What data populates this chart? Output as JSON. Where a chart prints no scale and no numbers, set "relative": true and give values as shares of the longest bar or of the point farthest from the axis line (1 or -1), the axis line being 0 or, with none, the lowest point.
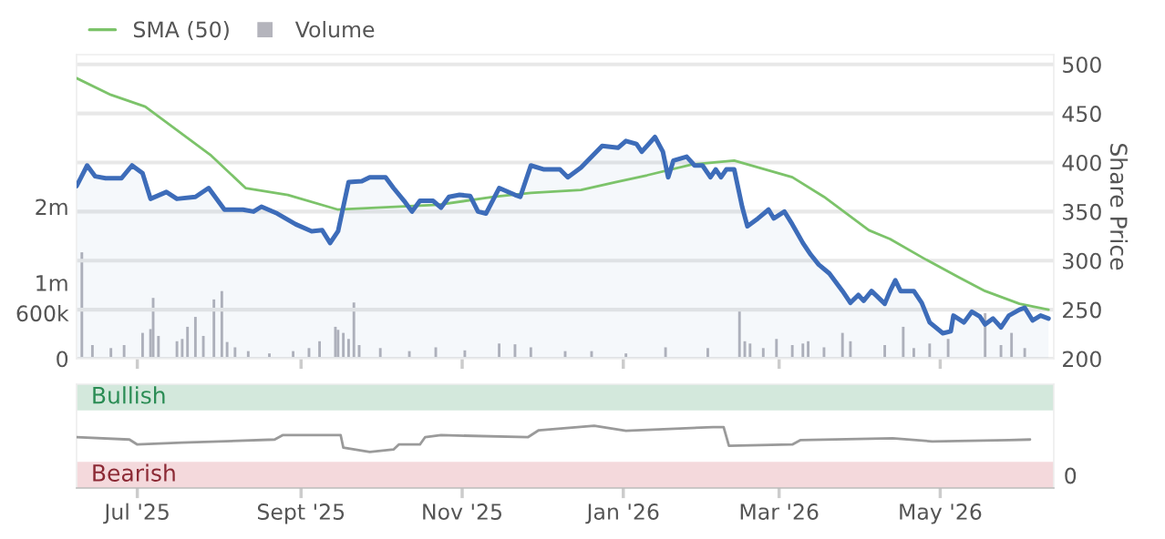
{
  "chart_data": [
    {
      "type": "line",
      "ylabel": "Share Price",
      "legend": "top left",
      "grid": "y",
      "tick_labels": "y",
      "xlim": [
        "2025-06-08",
        "2026-06-13"
      ],
      "xticks": [
        {
          "value": "2025-07-01",
          "label": null
        },
        {
          "value": "2025-09-01",
          "label": null
        },
        {
          "value": "2025-11-01",
          "label": null
        },
        {
          "value": "2026-01-01",
          "label": null
        },
        {
          "value": "2026-03-01",
          "label": null
        },
        {
          "value": "2026-05-01",
          "label": null
        }
      ],
      "ylim": [
        200,
        510
      ],
      "yticks": [
        200,
        250,
        300,
        350,
        400,
        450,
        500
      ],
      "y2lim": [
        0,
        4000000
      ],
      "y2ticks": [
        0,
        {
          "value": 600000,
          "label": "600k"
        },
        {
          "value": 1000000,
          "label": "1m"
        },
        {
          "value": 2000000,
          "label": "2m"
        }
      ],
      "series": [
        {
          "type": "area",
          "color": "#3d6cb9",
          "x": [
            "2025-06-08",
            "2025-06-12",
            "2025-06-15",
            "2025-06-19",
            "2025-06-25",
            "2025-06-29",
            "2025-07-03",
            "2025-07-06",
            "2025-07-12",
            "2025-07-16",
            "2025-07-23",
            "2025-07-28",
            "2025-08-03",
            "2025-08-10",
            "2025-08-14",
            "2025-08-17",
            "2025-08-23",
            "2025-08-30",
            "2025-09-05",
            "2025-09-09",
            "2025-09-12",
            "2025-09-15",
            "2025-09-19",
            "2025-09-24",
            "2025-09-27",
            "2025-10-03",
            "2025-10-06",
            "2025-10-10",
            "2025-10-13",
            "2025-10-16",
            "2025-10-21",
            "2025-10-24",
            "2025-10-27",
            "2025-10-31",
            "2025-11-04",
            "2025-11-07",
            "2025-11-10",
            "2025-11-15",
            "2025-11-21",
            "2025-11-23",
            "2025-11-27",
            "2025-12-02",
            "2025-12-08",
            "2025-12-11",
            "2025-12-16",
            "2025-12-24",
            "2025-12-30",
            "2026-01-02",
            "2026-01-06",
            "2026-01-08",
            "2026-01-13",
            "2026-01-16",
            "2026-01-18",
            "2026-01-20",
            "2026-01-25",
            "2026-01-28",
            "2026-01-31",
            "2026-02-03",
            "2026-02-05",
            "2026-02-07",
            "2026-02-09",
            "2026-02-12",
            "2026-02-15",
            "2026-02-17",
            "2026-02-21",
            "2026-02-25",
            "2026-02-27",
            "2026-03-03",
            "2026-03-06",
            "2026-03-10",
            "2026-03-13",
            "2026-03-16",
            "2026-03-20",
            "2026-03-25",
            "2026-03-28",
            "2026-03-31",
            "2026-04-02",
            "2026-04-05",
            "2026-04-10",
            "2026-04-12",
            "2026-04-14",
            "2026-04-16",
            "2026-04-21",
            "2026-04-24",
            "2026-04-27",
            "2026-05-02",
            "2026-05-05",
            "2026-05-06",
            "2026-05-10",
            "2026-05-13",
            "2026-05-16",
            "2026-05-18",
            "2026-05-21",
            "2026-05-24",
            "2026-05-27",
            "2026-05-31",
            "2026-06-02",
            "2026-06-05",
            "2026-06-08",
            "2026-06-11"
          ],
          "values": [
            376,
            397,
            386,
            384,
            384,
            397,
            389,
            363,
            370,
            363,
            365,
            374,
            352,
            352,
            350,
            355,
            348,
            337,
            330,
            331,
            318,
            330,
            380,
            381,
            385,
            385,
            374,
            361,
            350,
            361,
            361,
            354,
            365,
            367,
            366,
            350,
            348,
            374,
            367,
            365,
            397,
            393,
            393,
            385,
            395,
            417,
            415,
            422,
            419,
            411,
            426,
            411,
            385,
            402,
            406,
            397,
            397,
            385,
            393,
            385,
            393,
            393,
            355,
            335,
            343,
            352,
            343,
            350,
            337,
            318,
            306,
            296,
            287,
            269,
            257,
            265,
            259,
            269,
            256,
            269,
            280,
            269,
            269,
            257,
            237,
            226,
            228,
            244,
            237,
            248,
            243,
            235,
            241,
            232,
            244,
            250,
            252,
            239,
            244,
            241
          ]
        },
        {
          "type": "line",
          "name": "SMA (50)",
          "color": "#7cc36a",
          "x": [
            "2025-06-08",
            "2025-06-21",
            "2025-07-04",
            "2025-07-29",
            "2025-08-11",
            "2025-08-27",
            "2025-09-15",
            "2025-10-23",
            "2025-11-13",
            "2025-11-27",
            "2025-12-16",
            "2025-12-29",
            "2026-01-10",
            "2026-01-27",
            "2026-02-12",
            "2026-03-06",
            "2026-03-18",
            "2026-04-04",
            "2026-04-12",
            "2026-04-25",
            "2026-05-08",
            "2026-05-18",
            "2026-05-31",
            "2026-06-11"
          ],
          "values": [
            486,
            469,
            457,
            407,
            374,
            367,
            352,
            357,
            365,
            369,
            372,
            380,
            387,
            398,
            402,
            385,
            365,
            331,
            322,
            302,
            283,
            269,
            256,
            250
          ]
        },
        {
          "type": "bar",
          "name": "Volume",
          "axis": "y2",
          "color": "#b4b4bc",
          "x": [
            "2025-06-10",
            "2025-06-14",
            "2025-06-21",
            "2025-06-26",
            "2025-07-03",
            "2025-07-06",
            "2025-07-07",
            "2025-07-09",
            "2025-07-16",
            "2025-07-18",
            "2025-07-20",
            "2025-07-23",
            "2025-07-26",
            "2025-07-30",
            "2025-08-02",
            "2025-08-04",
            "2025-08-07",
            "2025-08-12",
            "2025-08-20",
            "2025-08-29",
            "2025-09-04",
            "2025-09-08",
            "2025-09-14",
            "2025-09-15",
            "2025-09-17",
            "2025-09-19",
            "2025-09-21",
            "2025-09-23",
            "2025-10-01",
            "2025-10-12",
            "2025-10-22",
            "2025-11-02",
            "2025-11-15",
            "2025-11-21",
            "2025-11-27",
            "2025-12-10",
            "2025-12-20",
            "2026-01-02",
            "2026-01-17",
            "2026-02-02",
            "2026-02-14",
            "2026-02-16",
            "2026-02-18",
            "2026-02-23",
            "2026-02-28",
            "2026-03-06",
            "2026-03-10",
            "2026-03-12",
            "2026-03-18",
            "2026-03-25",
            "2026-03-28",
            "2026-04-10",
            "2026-04-17",
            "2026-04-21",
            "2026-04-27",
            "2026-05-04",
            "2026-05-18",
            "2026-05-24",
            "2026-05-28",
            "2026-06-02"
          ],
          "values": [
            1400000,
            180000,
            140000,
            180000,
            340000,
            390000,
            800000,
            300000,
            230000,
            260000,
            420000,
            550000,
            300000,
            780000,
            890000,
            220000,
            150000,
            100000,
            70000,
            100000,
            140000,
            230000,
            420000,
            380000,
            340000,
            260000,
            740000,
            180000,
            140000,
            100000,
            150000,
            110000,
            200000,
            190000,
            150000,
            100000,
            100000,
            70000,
            150000,
            140000,
            630000,
            230000,
            200000,
            140000,
            260000,
            180000,
            200000,
            230000,
            150000,
            340000,
            230000,
            180000,
            420000,
            140000,
            200000,
            260000,
            600000,
            180000,
            340000,
            140000
          ]
        }
      ]
    },
    {
      "type": "line",
      "xlim": [
        "2025-06-08",
        "2026-06-13"
      ],
      "relative": true,
      "annotations": [
        "0"
      ],
      "xticks": [
        {
          "value": "2025-07-01",
          "label": "Jul '25"
        },
        {
          "value": "2025-09-01",
          "label": "Sept '25"
        },
        {
          "value": "2025-11-01",
          "label": "Nov '25"
        },
        {
          "value": "2026-01-01",
          "label": "Jan '26"
        },
        {
          "value": "2026-03-01",
          "label": "Mar '26"
        },
        {
          "value": "2026-05-01",
          "label": "May '26"
        }
      ],
      "bands": [
        {
          "axis": "y",
          "from": 1.25,
          "to": 1.67,
          "label": "Bullish",
          "color": "#d3e8dc"
        },
        {
          "axis": "y",
          "from": 0,
          "to": 0.42,
          "label": "Bearish",
          "color": "#f4d9dc"
        }
      ],
      "series": [
        {
          "color": "#9a9a9a",
          "x": [
            "2025-06-08",
            "2025-06-28",
            "2025-07-01",
            "2025-07-18",
            "2025-08-22",
            "2025-08-25",
            "2025-09-16",
            "2025-09-17",
            "2025-09-27",
            "2025-10-06",
            "2025-10-08",
            "2025-10-16",
            "2025-10-18",
            "2025-10-24",
            "2025-11-26",
            "2025-11-30",
            "2025-12-21",
            "2026-01-02",
            "2026-02-04",
            "2026-02-08",
            "2026-02-10",
            "2026-03-06",
            "2026-03-09",
            "2026-04-13",
            "2026-04-28",
            "2026-05-27",
            "2026-06-04"
          ],
          "values": [
            0.82,
            0.78,
            0.7,
            0.73,
            0.78,
            0.85,
            0.85,
            0.65,
            0.58,
            0.62,
            0.7,
            0.7,
            0.82,
            0.85,
            0.82,
            0.93,
            1,
            0.92,
            0.98,
            0.98,
            0.68,
            0.7,
            0.77,
            0.8,
            0.75,
            0.77,
            0.78
          ]
        }
      ]
    }
  ]
}
